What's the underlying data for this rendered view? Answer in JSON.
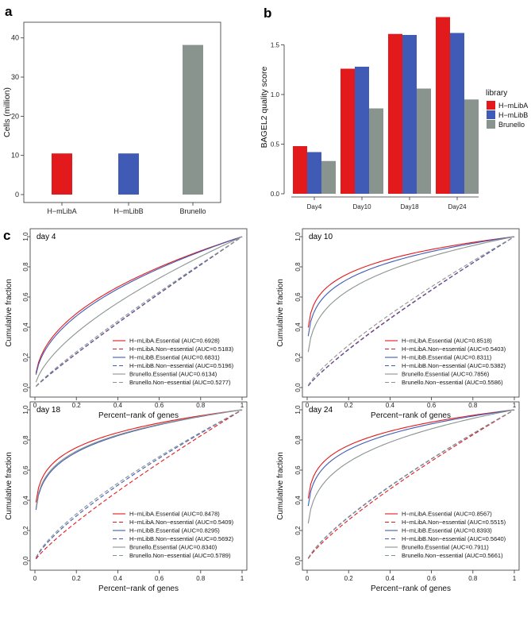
{
  "panel_labels": [
    "a",
    "b",
    "c"
  ],
  "colors": {
    "H-mLibA": "#e31a1c",
    "H-mLibB": "#3f5bb5",
    "Brunello": "#8a948f"
  },
  "chart_data": [
    {
      "id": "a",
      "type": "bar",
      "categories": [
        "H−mLibA",
        "H−mLibB",
        "Brunello"
      ],
      "values": [
        10.5,
        10.5,
        38.2
      ],
      "ylabel": "Cells (million)",
      "yticks": [
        0,
        10,
        20,
        30,
        40
      ],
      "ylim": [
        0,
        44
      ]
    },
    {
      "id": "b",
      "type": "bar",
      "categories": [
        "Day4",
        "Day10",
        "Day18",
        "Day24"
      ],
      "series": [
        {
          "name": "H−mLibA",
          "values": [
            0.48,
            1.26,
            1.61,
            1.78
          ]
        },
        {
          "name": "H−mLibB",
          "values": [
            0.42,
            1.28,
            1.6,
            1.62
          ]
        },
        {
          "name": "Brunello",
          "values": [
            0.33,
            0.86,
            1.06,
            0.95
          ]
        }
      ],
      "ylabel": "BAGEL2 quality score",
      "yticks": [
        "0.0",
        "0.5",
        "1.0",
        "1.5"
      ],
      "ylim": [
        0,
        1.84
      ],
      "legend_title": "library",
      "legend_position": "right"
    },
    {
      "id": "c",
      "type": "line",
      "xlabel": "Percent−rank of genes",
      "ylabel": "Cumulative fraction",
      "xticks": [
        "0",
        "0.2",
        "0.4",
        "0.6",
        "0.8",
        "1"
      ],
      "yticks": [
        "0.0",
        "0.2",
        "0.4",
        "0.6",
        "0.8",
        "1.0"
      ],
      "xlim": [
        0,
        1
      ],
      "ylim": [
        0,
        1
      ],
      "legend_position": "bottom-right",
      "subplots": [
        {
          "title": "day 4",
          "series": [
            {
              "name": "H−mLibA.Essential (AUC=0.6928)",
              "auc": 0.6928,
              "essential": true,
              "lib": "H-mLibA"
            },
            {
              "name": "H−mLibA.Non−essential (AUC=0.5183)",
              "auc": 0.5183,
              "essential": false,
              "lib": "H-mLibA"
            },
            {
              "name": "H−mLibB.Essential (AUC=0.6831)",
              "auc": 0.6831,
              "essential": true,
              "lib": "H-mLibB"
            },
            {
              "name": "H−mLibB.Non−essential (AUC=0.5196)",
              "auc": 0.5196,
              "essential": false,
              "lib": "H-mLibB"
            },
            {
              "name": "Brunello.Essential (AUC=0.6134)",
              "auc": 0.6134,
              "essential": true,
              "lib": "Brunello"
            },
            {
              "name": "Brunello.Non−essential (AUC=0.5277)",
              "auc": 0.5277,
              "essential": false,
              "lib": "Brunello"
            }
          ]
        },
        {
          "title": "day 10",
          "series": [
            {
              "name": "H−mLibA.Essential (AUC=0.8518)",
              "auc": 0.8518,
              "essential": true,
              "lib": "H-mLibA"
            },
            {
              "name": "H−mLibA.Non−essential (AUC=0.5403)",
              "auc": 0.5403,
              "essential": false,
              "lib": "H-mLibA"
            },
            {
              "name": "H−mLibB.Essential (AUC=0.8311)",
              "auc": 0.8311,
              "essential": true,
              "lib": "H-mLibB"
            },
            {
              "name": "H−mLibB.Non−essential (AUC=0.5382)",
              "auc": 0.5382,
              "essential": false,
              "lib": "H-mLibB"
            },
            {
              "name": "Brunello.Essential (AUC=0.7856)",
              "auc": 0.7856,
              "essential": true,
              "lib": "Brunello"
            },
            {
              "name": "Brunello.Non−essential (AUC=0.5586)",
              "auc": 0.5586,
              "essential": false,
              "lib": "Brunello"
            }
          ]
        },
        {
          "title": "day 18",
          "series": [
            {
              "name": "H−mLibA.Essential (AUC=0.8478)",
              "auc": 0.8478,
              "essential": true,
              "lib": "H-mLibA"
            },
            {
              "name": "H−mLibA.Non−essential (AUC=0.5409)",
              "auc": 0.5409,
              "essential": false,
              "lib": "H-mLibA"
            },
            {
              "name": "H−mLibB.Essential (AUC=0.8295)",
              "auc": 0.8295,
              "essential": true,
              "lib": "H-mLibB"
            },
            {
              "name": "H−mLibB.Non−essential (AUC=0.5692)",
              "auc": 0.5692,
              "essential": false,
              "lib": "H-mLibB"
            },
            {
              "name": "Brunello.Essential (AUC=0.8340)",
              "auc": 0.834,
              "essential": true,
              "lib": "Brunello"
            },
            {
              "name": "Brunello.Non−essential (AUC=0.5789)",
              "auc": 0.5789,
              "essential": false,
              "lib": "Brunello"
            }
          ]
        },
        {
          "title": "day 24",
          "series": [
            {
              "name": "H−mLibA.Essential (AUC=0.8567)",
              "auc": 0.8567,
              "essential": true,
              "lib": "H-mLibA"
            },
            {
              "name": "H−mLibA.Non−essential (AUC=0.5515)",
              "auc": 0.5515,
              "essential": false,
              "lib": "H-mLibA"
            },
            {
              "name": "H−mLibB.Essential (AUC=0.8393)",
              "auc": 0.8393,
              "essential": true,
              "lib": "H-mLibB"
            },
            {
              "name": "H−mLibB.Non−essential (AUC=0.5640)",
              "auc": 0.564,
              "essential": false,
              "lib": "H-mLibB"
            },
            {
              "name": "Brunello.Essential (AUC=0.7911)",
              "auc": 0.7911,
              "essential": true,
              "lib": "Brunello"
            },
            {
              "name": "Brunello.Non−essential (AUC=0.5661)",
              "auc": 0.5661,
              "essential": false,
              "lib": "Brunello"
            }
          ]
        }
      ]
    }
  ]
}
